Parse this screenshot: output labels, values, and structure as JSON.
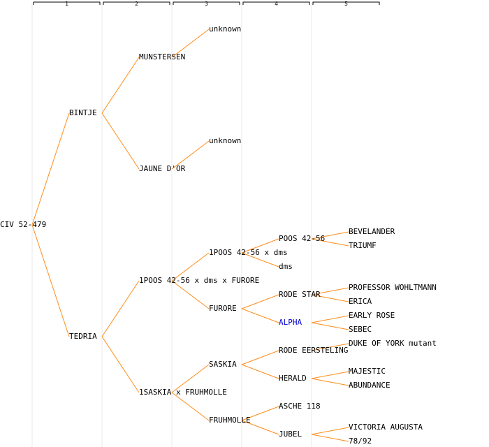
{
  "colors": {
    "edge": "#ff8c1a",
    "column_line": "#e8e8e8",
    "header_bracket": "#000000",
    "highlight": "#0000cc"
  },
  "generations": [
    "1",
    "2",
    "3",
    "4",
    "5"
  ],
  "nodes": {
    "n0": "CIV 52-479",
    "n1": "BINTJE",
    "n2": "TEDRIA",
    "n3": "MUNSTERSEN",
    "n4": "JAUNE D'OR",
    "n5": "1POOS 42-56 x dms x FURORE",
    "n6": "1SASKIA x FRUHMOLLE",
    "n7": "unknown",
    "n8": "unknown",
    "n9": "1POOS 42-56 x dms",
    "n10": "FURORE",
    "n11": "SASKIA",
    "n12": "FRUHMOLLE",
    "n13": "POOS 42-56",
    "n14": "dms",
    "n15": "RODE STAR",
    "n16": "ALPHA",
    "n17": "RODE EERSTELING",
    "n18": "HERALD",
    "n19": "ASCHE 118",
    "n20": "JUBEL",
    "n21": "BEVELANDER",
    "n22": "TRIUMF",
    "n23": "PROFESSOR WOHLTMANN",
    "n24": "ERICA",
    "n25": "EARLY ROSE",
    "n26": "SEBEC",
    "n27": "DUKE OF YORK mutant",
    "n28": "MAJESTIC",
    "n29": "ABUNDANCE",
    "n30": "VICTORIA AUGUSTA",
    "n31": "78/92"
  }
}
